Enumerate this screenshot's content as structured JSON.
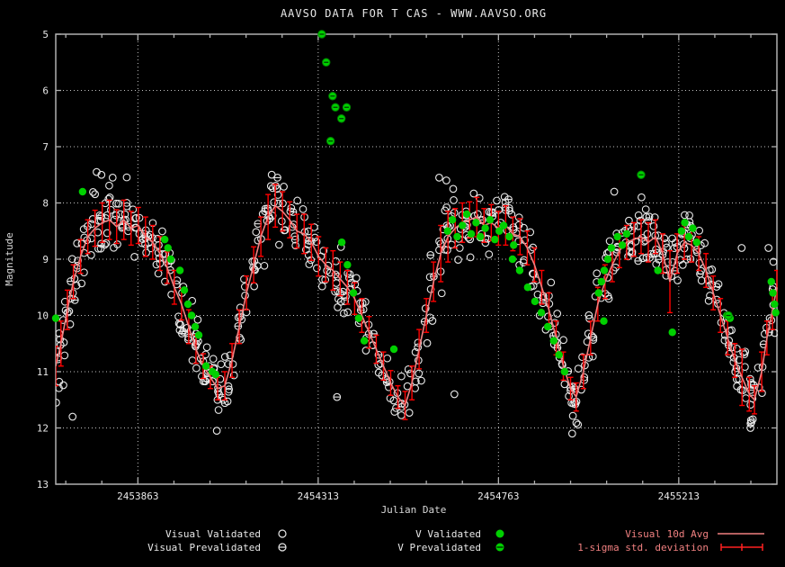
{
  "title": "AAVSO DATA FOR T CAS - WWW.AAVSO.ORG",
  "x_axis_label": "Julian Date",
  "y_axis_label": "Magnitude",
  "legend": {
    "visual_validated": "Visual Validated",
    "visual_prevalidated": "Visual Prevalidated",
    "v_validated": "V Validated",
    "v_prevalidated": "V Prevalidated",
    "visual_avg": "Visual 10d Avg",
    "sigma": "1-sigma std. deviation"
  },
  "colors": {
    "background": "#000000",
    "box": "#b0b0b0",
    "grid": "#d8d8d8",
    "visual_circle": "#e8e8e8",
    "v_green": "#00d000",
    "avg_line": "#f08080",
    "error_bar": "#ff0000",
    "text": "#e8e8e8",
    "legend_right_text": "#f08080"
  },
  "scatter_gen": {
    "seed": 20100915,
    "min_per_avg": 4,
    "max_per_avg": 9,
    "jd_jitter": 9.5,
    "mag_spread_factor": 2.2,
    "prevalidated_fraction": 0.07,
    "mag_clip": [
      5.0,
      12.45
    ]
  },
  "chart_data": {
    "type": "scatter",
    "title": "AAVSO DATA FOR T CAS - WWW.AAVSO.ORG",
    "xlabel": "Julian Date",
    "ylabel": "Magnitude",
    "x_range": [
      2453658,
      2455458
    ],
    "y_ticks": [
      5,
      6,
      7,
      8,
      9,
      10,
      11,
      12,
      13
    ],
    "y_axis_inverted": true,
    "x_ticks": [
      2453863,
      2454313,
      2454763,
      2455213
    ],
    "x_tick_labels": [
      "2453863",
      "2454313",
      "2454763",
      "2455213"
    ],
    "x_minor_tick_days": 90,
    "grid": "dotted at major ticks",
    "legend_position": "below plot, three columns",
    "series": [
      {
        "name": "Visual 10d Avg",
        "type": "line",
        "with_error_bars": "1-sigma std. deviation",
        "points_format": [
          "julian_date",
          "magnitude",
          "sigma"
        ],
        "points": [
          [
            2453658,
            10.9,
            0.35
          ],
          [
            2453671,
            10.5,
            0.4
          ],
          [
            2453687,
            9.9,
            0.35
          ],
          [
            2453702,
            9.4,
            0.3
          ],
          [
            2453720,
            8.95,
            0.3
          ],
          [
            2453738,
            8.6,
            0.3
          ],
          [
            2453756,
            8.45,
            0.32
          ],
          [
            2453774,
            8.35,
            0.35
          ],
          [
            2453792,
            8.3,
            0.35
          ],
          [
            2453810,
            8.42,
            0.3
          ],
          [
            2453828,
            8.3,
            0.35
          ],
          [
            2453846,
            8.45,
            0.3
          ],
          [
            2453864,
            8.4,
            0.32
          ],
          [
            2453882,
            8.6,
            0.35
          ],
          [
            2453900,
            8.7,
            0.3
          ],
          [
            2453918,
            8.9,
            0.3
          ],
          [
            2453936,
            9.15,
            0.28
          ],
          [
            2453954,
            9.5,
            0.3
          ],
          [
            2453972,
            9.8,
            0.28
          ],
          [
            2453990,
            10.2,
            0.3
          ],
          [
            2454008,
            10.6,
            0.25
          ],
          [
            2454026,
            10.9,
            0.22
          ],
          [
            2454044,
            11.1,
            0.2
          ],
          [
            2454062,
            11.3,
            0.2
          ],
          [
            2454080,
            11.25,
            0.25
          ],
          [
            2454098,
            10.8,
            0.3
          ],
          [
            2454116,
            10.2,
            0.3
          ],
          [
            2454134,
            9.6,
            0.3
          ],
          [
            2454152,
            9.1,
            0.32
          ],
          [
            2454170,
            8.6,
            0.35
          ],
          [
            2454188,
            8.25,
            0.4
          ],
          [
            2454206,
            8.05,
            0.38
          ],
          [
            2454224,
            8.15,
            0.35
          ],
          [
            2454242,
            8.3,
            0.32
          ],
          [
            2454260,
            8.5,
            0.3
          ],
          [
            2454278,
            8.55,
            0.35
          ],
          [
            2454296,
            8.7,
            0.32
          ],
          [
            2454314,
            8.95,
            0.35
          ],
          [
            2454332,
            9.1,
            0.3
          ],
          [
            2454350,
            9.2,
            0.35
          ],
          [
            2454368,
            9.35,
            0.3
          ],
          [
            2454386,
            9.5,
            0.3
          ],
          [
            2454404,
            9.7,
            0.28
          ],
          [
            2454422,
            10.0,
            0.3
          ],
          [
            2454440,
            10.3,
            0.28
          ],
          [
            2454458,
            10.6,
            0.25
          ],
          [
            2454476,
            10.9,
            0.25
          ],
          [
            2454494,
            11.2,
            0.22
          ],
          [
            2454512,
            11.45,
            0.2
          ],
          [
            2454530,
            11.6,
            0.25
          ],
          [
            2454547,
            11.2,
            0.3
          ],
          [
            2454565,
            10.6,
            0.35
          ],
          [
            2454583,
            10.0,
            0.3
          ],
          [
            2454601,
            9.4,
            0.35
          ],
          [
            2454619,
            8.9,
            0.5
          ],
          [
            2454637,
            8.6,
            0.45
          ],
          [
            2454655,
            8.45,
            0.35
          ],
          [
            2454673,
            8.35,
            0.35
          ],
          [
            2454691,
            8.3,
            0.32
          ],
          [
            2454709,
            8.25,
            0.35
          ],
          [
            2454727,
            8.4,
            0.3
          ],
          [
            2454745,
            8.35,
            0.32
          ],
          [
            2454763,
            8.45,
            0.3
          ],
          [
            2454781,
            8.4,
            0.35
          ],
          [
            2454799,
            8.55,
            0.3
          ],
          [
            2454817,
            8.6,
            0.32
          ],
          [
            2454835,
            8.8,
            0.3
          ],
          [
            2454853,
            9.1,
            0.3
          ],
          [
            2454871,
            9.5,
            0.3
          ],
          [
            2454889,
            9.9,
            0.3
          ],
          [
            2454907,
            10.4,
            0.3
          ],
          [
            2454925,
            10.9,
            0.25
          ],
          [
            2454943,
            11.3,
            0.2
          ],
          [
            2454957,
            11.45,
            0.25
          ],
          [
            2454975,
            11.0,
            0.3
          ],
          [
            2454993,
            10.4,
            0.3
          ],
          [
            2455011,
            9.8,
            0.3
          ],
          [
            2455029,
            9.4,
            0.3
          ],
          [
            2455047,
            9.1,
            0.3
          ],
          [
            2455065,
            8.85,
            0.3
          ],
          [
            2455083,
            8.7,
            0.3
          ],
          [
            2455101,
            8.65,
            0.3
          ],
          [
            2455119,
            8.6,
            0.3
          ],
          [
            2455137,
            8.7,
            0.35
          ],
          [
            2455155,
            8.6,
            0.3
          ],
          [
            2455173,
            8.9,
            0.35
          ],
          [
            2455191,
            9.4,
            0.55
          ],
          [
            2455209,
            8.9,
            0.35
          ],
          [
            2455227,
            8.7,
            0.3
          ],
          [
            2455245,
            8.75,
            0.3
          ],
          [
            2455263,
            8.9,
            0.3
          ],
          [
            2455281,
            9.2,
            0.3
          ],
          [
            2455299,
            9.6,
            0.3
          ],
          [
            2455317,
            10.0,
            0.3
          ],
          [
            2455335,
            10.4,
            0.3
          ],
          [
            2455353,
            10.8,
            0.3
          ],
          [
            2455371,
            11.1,
            0.5
          ],
          [
            2455389,
            11.4,
            0.3
          ],
          [
            2455402,
            11.5,
            0.25
          ],
          [
            2455420,
            11.0,
            0.35
          ],
          [
            2455433,
            10.4,
            0.3
          ],
          [
            2455447,
            9.9,
            0.35
          ],
          [
            2455458,
            9.5,
            0.3
          ]
        ]
      },
      {
        "name": "V Validated",
        "type": "scatter",
        "points_format": [
          "julian_date",
          "magnitude"
        ],
        "points": [
          [
            2453658,
            10.05
          ],
          [
            2453725,
            7.8
          ],
          [
            2453930,
            8.65
          ],
          [
            2453938,
            8.8
          ],
          [
            2453945,
            9.0
          ],
          [
            2453968,
            9.2
          ],
          [
            2453979,
            9.55
          ],
          [
            2453988,
            9.8
          ],
          [
            2453997,
            10.0
          ],
          [
            2454006,
            10.2
          ],
          [
            2454015,
            10.35
          ],
          [
            2454033,
            10.9
          ],
          [
            2454049,
            11.0
          ],
          [
            2454057,
            11.05
          ],
          [
            2454372,
            8.7
          ],
          [
            2454386,
            9.1
          ],
          [
            2454401,
            9.6
          ],
          [
            2454414,
            10.05
          ],
          [
            2454428,
            10.45
          ],
          [
            2454502,
            10.6
          ],
          [
            2454636,
            8.5
          ],
          [
            2454648,
            8.3
          ],
          [
            2454660,
            8.6
          ],
          [
            2454673,
            8.4
          ],
          [
            2454684,
            8.2
          ],
          [
            2454695,
            8.55
          ],
          [
            2454707,
            8.35
          ],
          [
            2454718,
            8.6
          ],
          [
            2454730,
            8.45
          ],
          [
            2454742,
            8.3
          ],
          [
            2454754,
            8.65
          ],
          [
            2454765,
            8.5
          ],
          [
            2454776,
            8.4
          ],
          [
            2454790,
            8.6
          ],
          [
            2454801,
            8.75
          ],
          [
            2454798,
            9.0
          ],
          [
            2454816,
            9.2
          ],
          [
            2454836,
            9.5
          ],
          [
            2454854,
            9.75
          ],
          [
            2454870,
            9.95
          ],
          [
            2454886,
            10.2
          ],
          [
            2454901,
            10.45
          ],
          [
            2454914,
            10.7
          ],
          [
            2454928,
            11.0
          ],
          [
            2455013,
            9.6
          ],
          [
            2455020,
            9.4
          ],
          [
            2455026,
            10.1
          ],
          [
            2455027,
            9.2
          ],
          [
            2455036,
            9.0
          ],
          [
            2455045,
            8.8
          ],
          [
            2455060,
            8.6
          ],
          [
            2455072,
            8.75
          ],
          [
            2455083,
            8.55
          ],
          [
            2455161,
            9.2
          ],
          [
            2455197,
            10.3
          ],
          [
            2455220,
            8.5
          ],
          [
            2455228,
            8.35
          ],
          [
            2455238,
            8.6
          ],
          [
            2455248,
            8.45
          ],
          [
            2455258,
            8.7
          ],
          [
            2455333,
            10.0
          ],
          [
            2455341,
            10.05
          ],
          [
            2455444,
            9.4
          ],
          [
            2455448,
            9.6
          ],
          [
            2455452,
            9.8
          ],
          [
            2455455,
            9.95
          ]
        ]
      },
      {
        "name": "V Prevalidated",
        "type": "scatter",
        "points_format": [
          "julian_date",
          "magnitude"
        ],
        "points": [
          [
            2454322,
            5.0
          ],
          [
            2454333,
            5.5
          ],
          [
            2454344,
            6.9
          ],
          [
            2454349,
            6.1
          ],
          [
            2454356,
            6.3
          ],
          [
            2454371,
            6.5
          ],
          [
            2454384,
            6.3
          ],
          [
            2455119,
            7.5
          ],
          [
            2455337,
            10.0
          ]
        ]
      },
      {
        "name": "Visual Validated",
        "type": "scatter",
        "note": "several hundred visual estimates scattered around the 10-day means; regenerated procedurally from the mean curve plus the explicit outliers below",
        "generated_from_avg": true,
        "points_format": [
          "julian_date",
          "magnitude"
        ],
        "points": [
          [
            2453760,
            7.45
          ],
          [
            2453772,
            7.5
          ],
          [
            2453800,
            7.55
          ],
          [
            2454195,
            7.7
          ],
          [
            2454210,
            7.75
          ],
          [
            2454615,
            7.55
          ],
          [
            2454633,
            7.6
          ],
          [
            2454650,
            7.75
          ],
          [
            2455052,
            7.8
          ],
          [
            2455120,
            7.9
          ],
          [
            2455370,
            8.8
          ],
          [
            2455437,
            8.8
          ],
          [
            2453659,
            11.55
          ],
          [
            2453700,
            11.8
          ],
          [
            2454060,
            12.05
          ],
          [
            2454653,
            11.4
          ],
          [
            2454947,
            12.1
          ],
          [
            2455392,
            12.0
          ]
        ]
      },
      {
        "name": "Visual Prevalidated",
        "type": "scatter",
        "points_format": [
          "julian_date",
          "magnitude"
        ],
        "points": [
          [
            2454360,
            11.45
          ]
        ]
      }
    ]
  }
}
